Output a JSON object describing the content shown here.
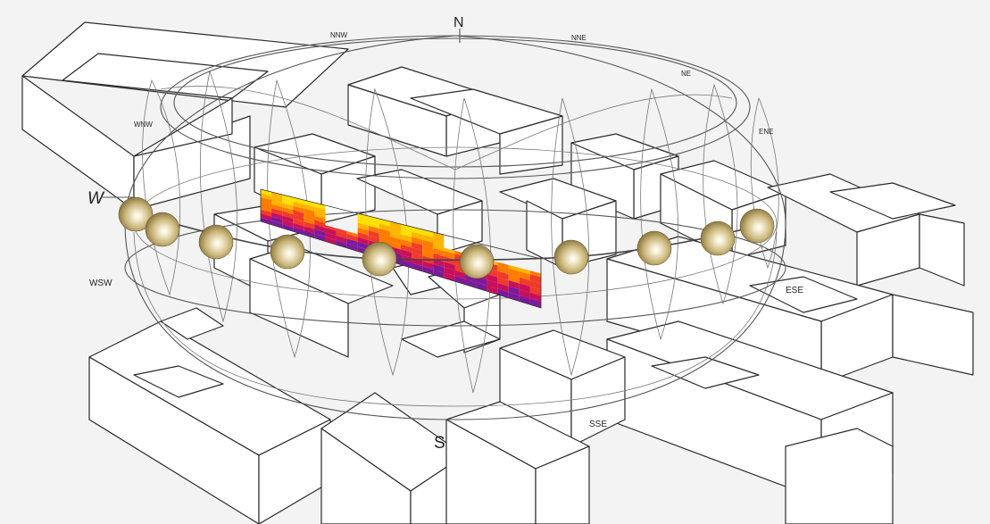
{
  "compass": {
    "n": "N",
    "nnw": "NNW",
    "nne": "NNE",
    "ne": "NE",
    "wnw": "WNW",
    "ene": "ENE",
    "w": "W",
    "wsw": "WSW",
    "ese": "ESE",
    "sse": "SSE",
    "s": "S"
  },
  "sun_positions": 10,
  "heatmap_colors": [
    "#ffe000",
    "#ffb400",
    "#ff7a00",
    "#f03a2a",
    "#c8105a",
    "#7a1a9a"
  ]
}
